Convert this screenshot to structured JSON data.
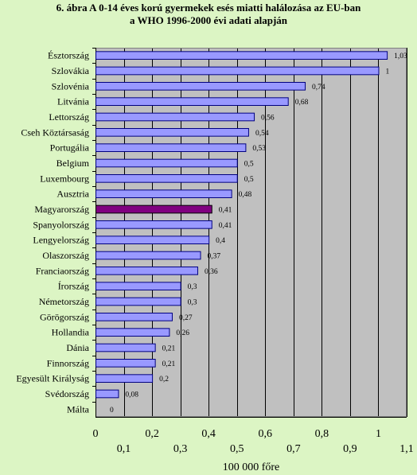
{
  "title_line1": "6. ábra A 0-14 éves korú gyermekek esés miatti halálozása az EU-ban",
  "title_line2": "a WHO 1996-2000 évi adati alapján",
  "colors": {
    "page_bg": "#dcf5c4",
    "plot_bg": "#c0c0c0",
    "bar": "#9999ff",
    "bar_highlight": "#800080",
    "bar_border": "#000080"
  },
  "chart_data": {
    "type": "bar",
    "orientation": "horizontal",
    "title": "6. ábra A 0-14 éves korú gyermekek esés miatti halálozása az EU-ban a WHO 1996-2000 évi adati alapján",
    "xlabel": "100 000 főre",
    "ylabel": "",
    "xlim": [
      0,
      1.1
    ],
    "grid": true,
    "categories": [
      "Észtország",
      "Szlovákia",
      "Szlovénia",
      "Litvánia",
      "Lettország",
      "Cseh Köztársaság",
      "Portugália",
      "Belgium",
      "Luxembourg",
      "Ausztria",
      "Magyarország",
      "Spanyolország",
      "Lengyelország",
      "Olaszország",
      "Franciaország",
      "Írország",
      "Németország",
      "Görögország",
      "Hollandia",
      "Dánia",
      "Finnország",
      "Egyesült Királyság",
      "Svédország",
      "Málta"
    ],
    "values": [
      1.03,
      1.0,
      0.74,
      0.68,
      0.56,
      0.54,
      0.53,
      0.5,
      0.5,
      0.48,
      0.41,
      0.41,
      0.4,
      0.37,
      0.36,
      0.3,
      0.3,
      0.27,
      0.26,
      0.21,
      0.21,
      0.2,
      0.08,
      0
    ],
    "value_labels": [
      "1,03",
      "1",
      "0,74",
      "0,68",
      "0,56",
      "0,54",
      "0,53",
      "0,5",
      "0,5",
      "0,48",
      "0,41",
      "0,41",
      "0,4",
      "0,37",
      "0,36",
      "0,3",
      "0,3",
      "0,27",
      "0,26",
      "0,21",
      "0,21",
      "0,2",
      "0,08",
      "0"
    ],
    "highlight": "Magyarország",
    "ticks_upper": [
      "0",
      "0,2",
      "0,4",
      "0,6",
      "0,8",
      "1"
    ],
    "ticks_lower": [
      "0,1",
      "0,3",
      "0,5",
      "0,7",
      "0,9",
      "1,1"
    ]
  }
}
